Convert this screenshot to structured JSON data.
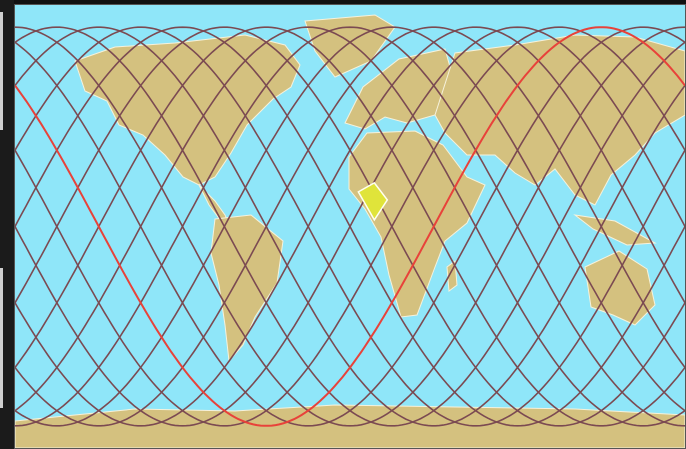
{
  "map": {
    "projection": "equirectangular",
    "colors": {
      "ocean": "#8fe6f9",
      "land": "#d4c17f",
      "land_outline": "#f6f2dc",
      "ground_track": "#7b4a52",
      "current_orbit": "#e8423a",
      "coverage_fill": "#e0e43a",
      "coverage_outline": "#fffff0"
    },
    "ground_tracks": {
      "count": 16,
      "inclination_deg": 81,
      "lon_spacing_deg": 22.5,
      "current_orbit_index": 2
    },
    "coverage_marker": {
      "shape": "diamond",
      "center": {
        "lat": 10,
        "lon": 12
      }
    }
  }
}
